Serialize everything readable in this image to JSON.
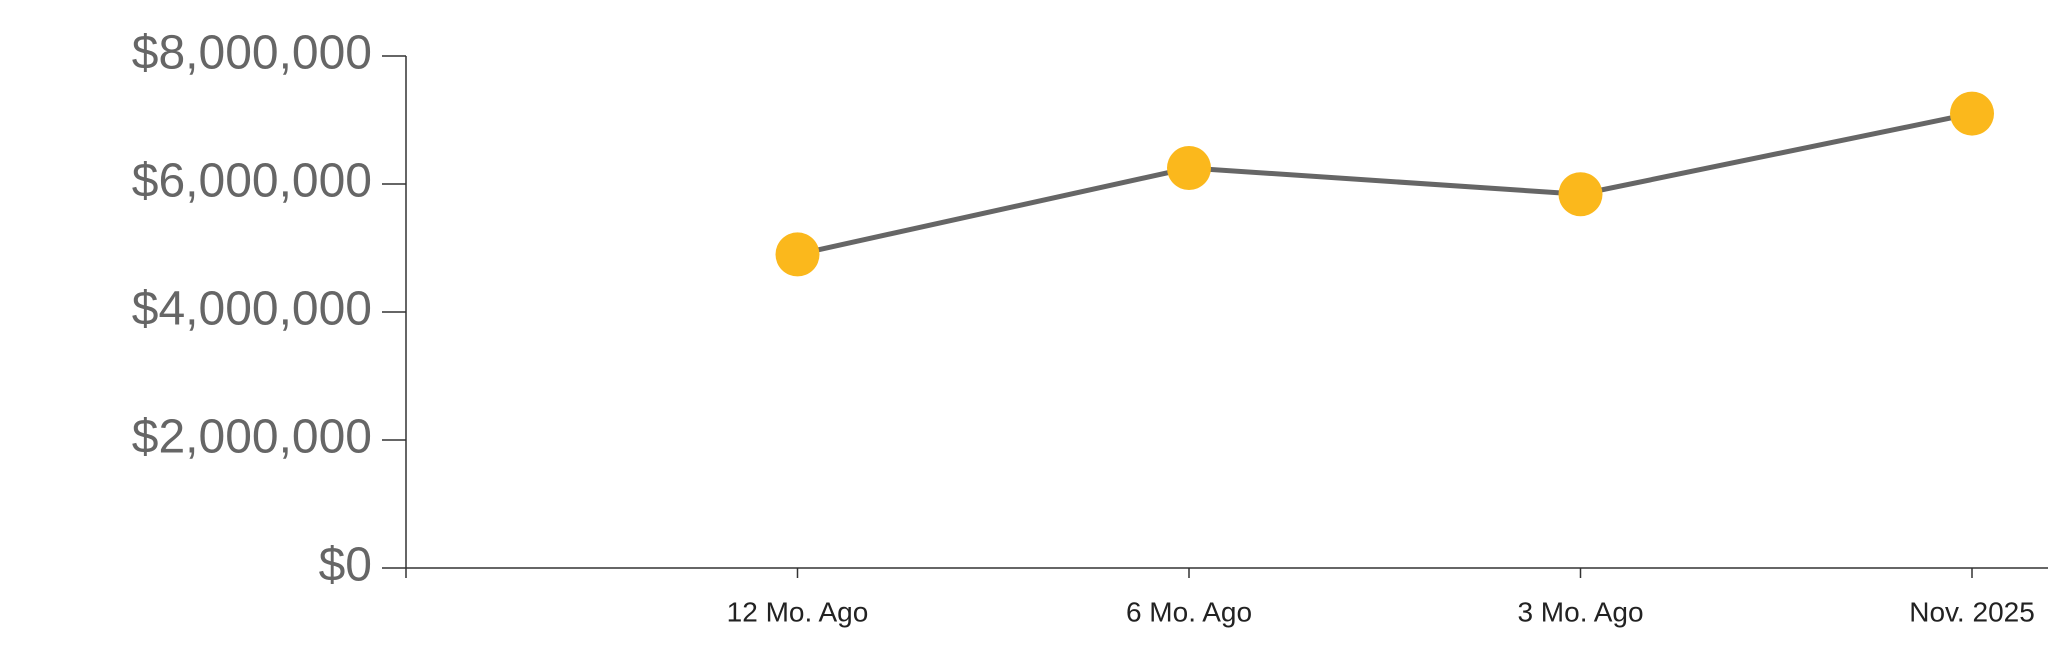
{
  "chart_data": {
    "type": "line",
    "categories": [
      null,
      "12 Mo. Ago",
      "6 Mo. Ago",
      "3 Mo. Ago",
      "Nov. 2025"
    ],
    "series": [
      {
        "values": [
          null,
          4900000,
          6250000,
          5840000,
          7100000
        ],
        "color": "#666666",
        "marker_color": "#fbb81c"
      }
    ],
    "ylim": [
      0,
      8000000
    ],
    "yticks": [
      {
        "value": 0,
        "label": "$0"
      },
      {
        "value": 2000000,
        "label": "$2,000,000"
      },
      {
        "value": 4000000,
        "label": "$4,000,000"
      },
      {
        "value": 6000000,
        "label": "$6,000,000"
      },
      {
        "value": 8000000,
        "label": "$8,000,000"
      }
    ],
    "grid": false
  }
}
